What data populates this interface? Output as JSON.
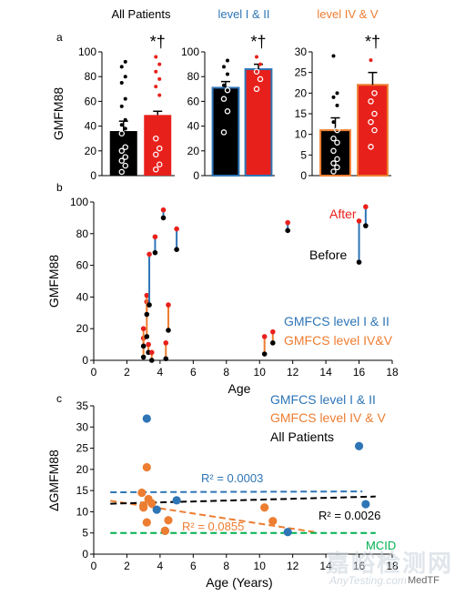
{
  "colors": {
    "red": "#e8201b",
    "blue": "#2e75b6",
    "orange": "#ed7d31",
    "black": "#000000",
    "green": "#00b050",
    "gray": "#808080"
  },
  "panel_a": {
    "label": "a",
    "ylabel": "GMFM88",
    "groups": [
      {
        "title": "All Patients",
        "title_color": "#000000",
        "ymax": 100,
        "ticks": [
          0,
          20,
          40,
          60,
          80,
          100
        ],
        "before_mean": 36,
        "before_err": 8,
        "after_mean": 49,
        "after_err": 3,
        "before_points": [
          3,
          8,
          12,
          15,
          20,
          23,
          34,
          38,
          41,
          45,
          56,
          62,
          75,
          80,
          88,
          92
        ],
        "after_points": [
          5,
          9,
          17,
          22,
          30,
          65,
          72,
          78,
          84,
          90,
          96
        ],
        "annotation": "*†"
      },
      {
        "title": "level I & II",
        "title_color": "#2e75b6",
        "ymax": 100,
        "ticks": [
          0,
          20,
          40,
          60,
          80,
          100
        ],
        "before_mean": 71,
        "before_err": 5,
        "after_mean": 86,
        "after_err": 4,
        "before_points": [
          35,
          52,
          62,
          69,
          73,
          82,
          88,
          93
        ],
        "after_points": [
          70,
          78,
          84,
          90,
          96
        ],
        "annotation": "*†"
      },
      {
        "title": "level IV & V",
        "title_color": "#ed7d31",
        "ymax": 30,
        "ticks": [
          0,
          5,
          10,
          15,
          20,
          25,
          30
        ],
        "before_mean": 11,
        "before_err": 3,
        "after_mean": 22,
        "after_err": 3,
        "before_points": [
          1,
          2,
          3,
          4,
          6,
          8,
          9,
          11,
          13,
          17,
          19,
          20,
          29
        ],
        "after_points": [
          7,
          11,
          13,
          15,
          18,
          20,
          28
        ],
        "annotation": "*†"
      }
    ]
  },
  "chart_data": [
    {
      "type": "bar",
      "panel": "a",
      "categories": [
        "All Patients",
        "level I & II",
        "level IV & V"
      ],
      "series": [
        {
          "name": "Before",
          "values": [
            36,
            71,
            11
          ]
        },
        {
          "name": "After",
          "values": [
            49,
            86,
            22
          ]
        }
      ],
      "ylabel": "GMFM88"
    },
    {
      "type": "scatter",
      "panel": "b",
      "xlabel": "Age",
      "ylabel": "GMFM88",
      "xlim": [
        0,
        18
      ],
      "ylim": [
        0,
        100
      ],
      "xticks": [
        0,
        2,
        4,
        6,
        8,
        10,
        12,
        14,
        16,
        18
      ],
      "yticks": [
        0,
        20,
        40,
        60,
        80,
        100
      ],
      "pairs": [
        {
          "age": 3.0,
          "before": 2,
          "after": 14,
          "level": "IV&V"
        },
        {
          "age": 3.0,
          "before": 9,
          "after": 20,
          "level": "IV&V"
        },
        {
          "age": 3.2,
          "before": 15,
          "after": 37,
          "level": "IV&V"
        },
        {
          "age": 3.2,
          "before": 29,
          "after": 41,
          "level": "IV&V"
        },
        {
          "age": 3.3,
          "before": 5,
          "after": 10,
          "level": "IV&V"
        },
        {
          "age": 3.35,
          "before": 35,
          "after": 67,
          "level": "I&II"
        },
        {
          "age": 3.5,
          "before": 0,
          "after": 5,
          "level": "IV&V"
        },
        {
          "age": 3.7,
          "before": 68,
          "after": 78,
          "level": "I&II"
        },
        {
          "age": 4.2,
          "before": 90,
          "after": 95,
          "level": "I&II"
        },
        {
          "age": 4.5,
          "before": 19,
          "after": 35,
          "level": "IV&V"
        },
        {
          "age": 4.35,
          "before": 1,
          "after": 11,
          "level": "IV&V"
        },
        {
          "age": 5.0,
          "before": 70,
          "after": 83,
          "level": "I&II"
        },
        {
          "age": 10.3,
          "before": 4,
          "after": 15,
          "level": "IV&V"
        },
        {
          "age": 10.8,
          "before": 11,
          "after": 18,
          "level": "IV&V"
        },
        {
          "age": 11.7,
          "before": 82,
          "after": 87,
          "level": "I&II"
        },
        {
          "age": 16.0,
          "before": 62,
          "after": 88,
          "level": "I&II"
        },
        {
          "age": 16.4,
          "before": 85,
          "after": 97,
          "level": "I&II"
        }
      ],
      "legend": [
        {
          "text": "After",
          "color": "#e8201b"
        },
        {
          "text": "Before",
          "color": "#000000"
        },
        {
          "text": "GMFCS level I & II",
          "color": "#2e75b6"
        },
        {
          "text": "GMFCS level IV&V",
          "color": "#ed7d31"
        }
      ]
    },
    {
      "type": "scatter",
      "panel": "c",
      "xlabel": "Age (Years)",
      "ylabel": "ΔGMFM88",
      "xlim": [
        0,
        18
      ],
      "ylim": [
        0,
        35
      ],
      "xticks": [
        0,
        2,
        4,
        6,
        8,
        10,
        12,
        14,
        16,
        18
      ],
      "yticks": [
        0,
        5,
        10,
        15,
        20,
        25,
        30,
        35
      ],
      "series": [
        {
          "name": "GMFCS level I & II",
          "color": "#2e75b6",
          "x": [
            3.2,
            3.8,
            4.3,
            5.0,
            11.7,
            16.0,
            16.4
          ],
          "y": [
            32,
            10.5,
            5.5,
            12.7,
            5.2,
            25.5,
            11.8
          ]
        },
        {
          "name": "GMFCS level IV & V",
          "color": "#ed7d31",
          "x": [
            2.9,
            3.0,
            3.0,
            3.2,
            3.2,
            3.3,
            3.5,
            4.3,
            4.5,
            10.3,
            10.8
          ],
          "y": [
            14.5,
            11.5,
            11,
            7.5,
            20.5,
            13,
            12,
            5.5,
            8,
            11,
            7.8
          ]
        }
      ],
      "fits": [
        {
          "name": "GMFCS level I & II",
          "color": "#2e75b6",
          "style": "dashed",
          "x": [
            1,
            16.2
          ],
          "y": [
            14.6,
            14.8
          ],
          "label": "R² = 0.0003"
        },
        {
          "name": "GMFCS level IV & V",
          "color": "#ed7d31",
          "style": "dashed",
          "x": [
            1,
            13.5
          ],
          "y": [
            12.6,
            5.1
          ],
          "label": "R² = 0.0855"
        },
        {
          "name": "All Patients",
          "color": "#000000",
          "style": "dashed",
          "x": [
            1,
            17
          ],
          "y": [
            11.9,
            13.6
          ],
          "label": "R² = 0.0026"
        },
        {
          "name": "MCID",
          "color": "#00b050",
          "style": "dashed",
          "x": [
            1,
            17
          ],
          "y": [
            5,
            5
          ],
          "label": "MCID"
        }
      ],
      "legend": [
        {
          "text": "GMFCS level I & II",
          "color": "#2e75b6"
        },
        {
          "text": "GMFCS level IV & V",
          "color": "#ed7d31"
        },
        {
          "text": "All Patients",
          "color": "#000000"
        }
      ]
    }
  ],
  "panel_labels": {
    "b": "b",
    "c": "c"
  },
  "watermark": {
    "main": "嘉峪检测网",
    "sub": "AnyTesting.com",
    "credit": "MedTF"
  }
}
